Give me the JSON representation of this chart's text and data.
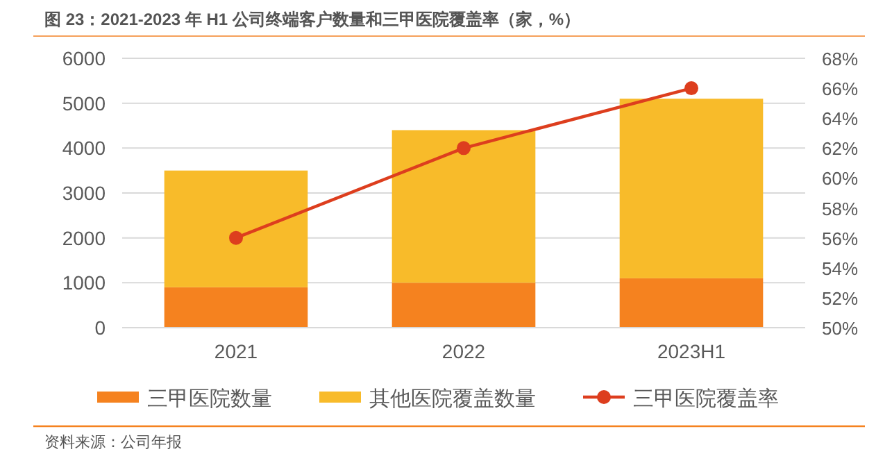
{
  "chart_data": {
    "type": "bar",
    "title": "图 23：2021-2023 年 H1 公司终端客户数量和三甲医院覆盖率（家，%）",
    "categories": [
      "2021",
      "2022",
      "2023H1"
    ],
    "series": [
      {
        "name": "三甲医院数量",
        "color": "#f5821f",
        "values": [
          900,
          1000,
          1100
        ]
      },
      {
        "name": "其他医院覆盖数量",
        "color": "#f8bb2a",
        "values": [
          2600,
          3400,
          4000
        ]
      },
      {
        "name": "三甲医院覆盖率",
        "color": "#dd3e1e",
        "type": "line",
        "axis": "y2",
        "marker": "circle",
        "values": [
          56,
          62,
          66
        ]
      }
    ],
    "stacked": true,
    "ylim": [
      0,
      6000
    ],
    "yticks": [
      0,
      1000,
      2000,
      3000,
      4000,
      5000,
      6000
    ],
    "y2lim": [
      50,
      68
    ],
    "y2ticks": [
      {
        "value": 50,
        "label": "50%"
      },
      {
        "value": 52,
        "label": "52%"
      },
      {
        "value": 54,
        "label": "54%"
      },
      {
        "value": 56,
        "label": "56%"
      },
      {
        "value": 58,
        "label": "58%"
      },
      {
        "value": 60,
        "label": "60%"
      },
      {
        "value": 62,
        "label": "62%"
      },
      {
        "value": 64,
        "label": "64%"
      },
      {
        "value": 66,
        "label": "66%"
      },
      {
        "value": 68,
        "label": "68%"
      }
    ],
    "grid": "y",
    "legend": "bottom",
    "annotations": [
      "资料来源：公司年报"
    ]
  }
}
